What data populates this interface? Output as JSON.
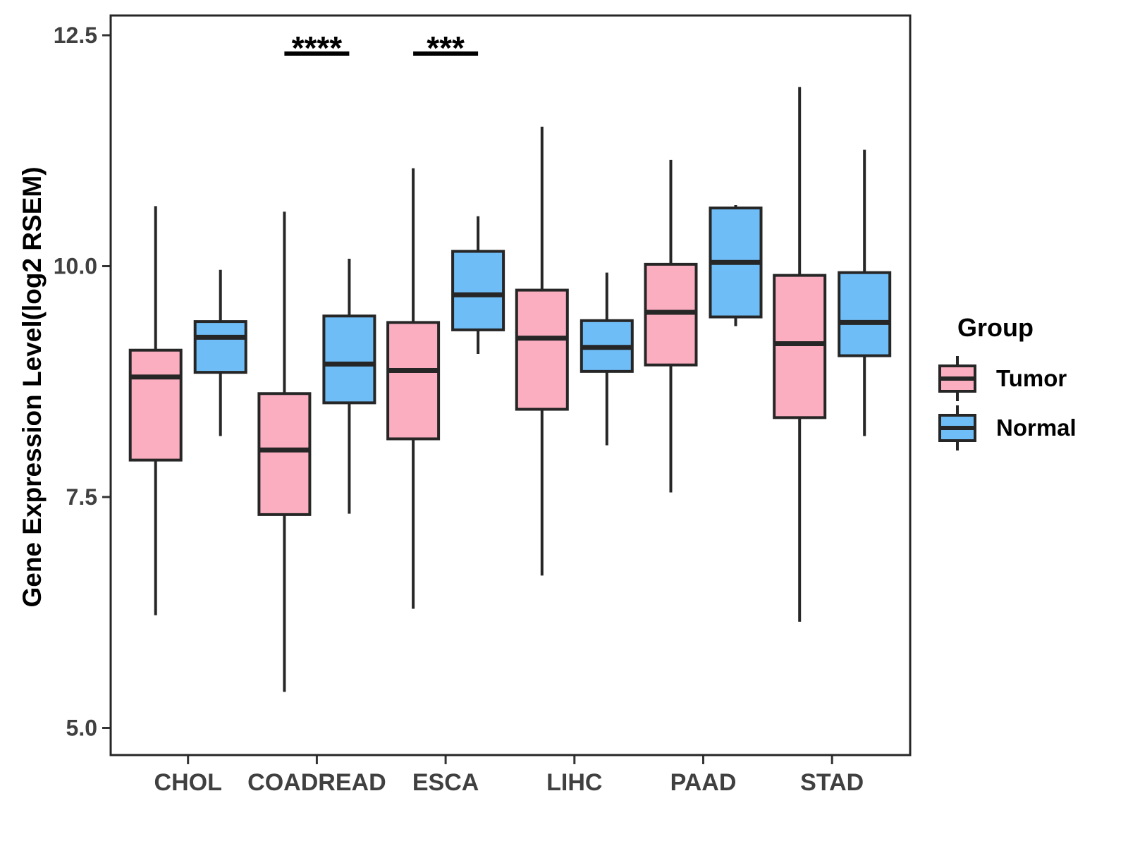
{
  "chart_data": {
    "type": "grouped_boxplot",
    "title": "",
    "xlabel": "",
    "ylabel": "Gene Expression Level(log2 RSEM)",
    "categories": [
      "CHOL",
      "COADREAD",
      "ESCA",
      "LIHC",
      "PAAD",
      "STAD"
    ],
    "y_axis": {
      "ticks": [
        12.5,
        10.0,
        7.5,
        5.0
      ],
      "tick_labels": [
        "12.5",
        "10.0",
        "7.5",
        "5.0"
      ],
      "range": [
        4.7,
        12.72
      ],
      "grid": false
    },
    "legend_position": "right",
    "series": [
      {
        "name": "Tumor",
        "color": "#FCAEC1",
        "boxes": [
          {
            "category": "CHOL",
            "whisker_low": 6.22,
            "q1": 7.9,
            "median": 8.8,
            "q3": 9.09,
            "whisker_high": 10.65
          },
          {
            "category": "COADREAD",
            "whisker_low": 5.39,
            "q1": 7.31,
            "median": 8.01,
            "q3": 8.62,
            "whisker_high": 10.59
          },
          {
            "category": "ESCA",
            "whisker_low": 6.29,
            "q1": 8.13,
            "median": 8.87,
            "q3": 9.39,
            "whisker_high": 11.06
          },
          {
            "category": "LIHC",
            "whisker_low": 6.65,
            "q1": 8.45,
            "median": 9.22,
            "q3": 9.74,
            "whisker_high": 11.51
          },
          {
            "category": "PAAD",
            "whisker_low": 7.55,
            "q1": 8.93,
            "median": 9.5,
            "q3": 10.02,
            "whisker_high": 11.15
          },
          {
            "category": "STAD",
            "whisker_low": 6.15,
            "q1": 8.36,
            "median": 9.16,
            "q3": 9.9,
            "whisker_high": 11.94
          }
        ]
      },
      {
        "name": "Normal",
        "color": "#6FBDF6",
        "boxes": [
          {
            "category": "CHOL",
            "whisker_low": 8.16,
            "q1": 8.85,
            "median": 9.23,
            "q3": 9.4,
            "whisker_high": 9.96
          },
          {
            "category": "COADREAD",
            "whisker_low": 7.32,
            "q1": 8.52,
            "median": 8.94,
            "q3": 9.46,
            "whisker_high": 10.08
          },
          {
            "category": "ESCA",
            "whisker_low": 9.05,
            "q1": 9.31,
            "median": 9.69,
            "q3": 10.16,
            "whisker_high": 10.54
          },
          {
            "category": "LIHC",
            "whisker_low": 8.06,
            "q1": 8.86,
            "median": 9.12,
            "q3": 9.41,
            "whisker_high": 9.93
          },
          {
            "category": "PAAD",
            "whisker_low": 9.35,
            "q1": 9.45,
            "median": 10.04,
            "q3": 10.63,
            "whisker_high": 10.66
          },
          {
            "category": "STAD",
            "whisker_low": 8.16,
            "q1": 9.03,
            "median": 9.39,
            "q3": 9.93,
            "whisker_high": 11.26
          }
        ]
      }
    ],
    "annotations": [
      {
        "label": "****",
        "category": "COADREAD"
      },
      {
        "label": "***",
        "category": "ESCA"
      }
    ]
  },
  "legend": {
    "title": "Group",
    "items": [
      {
        "label": "Tumor",
        "color": "#FCAEC1"
      },
      {
        "label": "Normal",
        "color": "#6FBDF6"
      }
    ]
  },
  "styles": {
    "box_line_color": "#262626",
    "tick_mark_color": "#333333",
    "tick_text_color": "#404040",
    "annotation_color": "#000000",
    "background": "#FFFFFF"
  }
}
